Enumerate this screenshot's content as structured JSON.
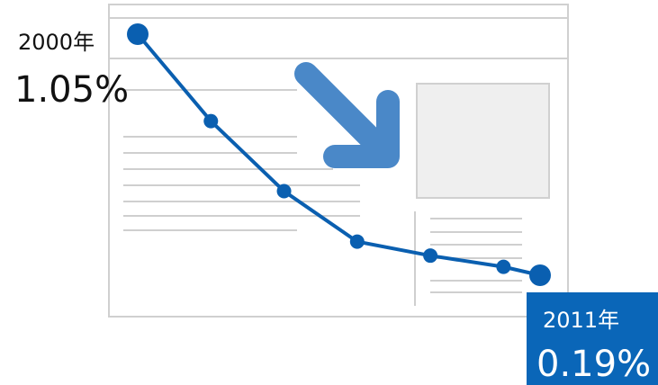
{
  "chart_data": {
    "type": "line",
    "x": [
      2000,
      2002,
      2004,
      2006,
      2008,
      2010,
      2011
    ],
    "x_labels": [
      "2000年",
      null,
      null,
      null,
      null,
      null,
      "2011年"
    ],
    "series": [
      {
        "color": "#0a5fb0",
        "values": [
          1.05,
          0.74,
          0.49,
          0.31,
          0.26,
          0.22,
          0.19
        ],
        "value_labels": [
          "1.05%",
          null,
          null,
          null,
          null,
          null,
          "0.19%"
        ]
      }
    ]
  }
}
